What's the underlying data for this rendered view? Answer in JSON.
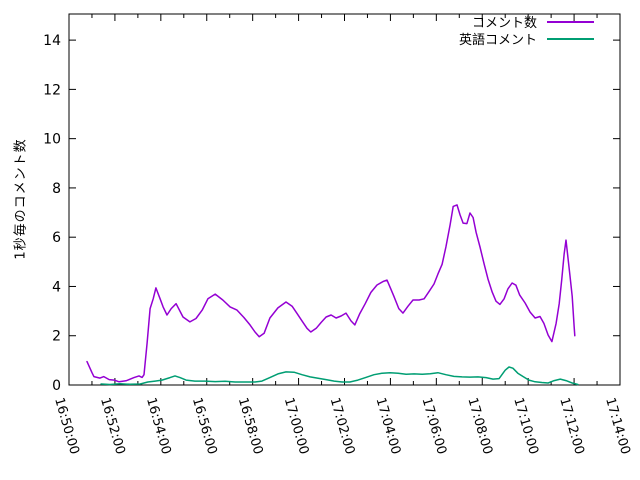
{
  "chart_data": {
    "type": "line",
    "title": "",
    "xlabel": "",
    "ylabel": "1秒毎のコメント数",
    "x_tick_labels": [
      "16:50:00",
      "16:52:00",
      "16:54:00",
      "16:56:00",
      "16:58:00",
      "17:00:00",
      "17:02:00",
      "17:04:00",
      "17:06:00",
      "17:08:00",
      "17:10:00",
      "17:12:00",
      "17:14:00"
    ],
    "x_range_seconds": [
      0,
      1440
    ],
    "x_major_tick_seconds": 120,
    "x_minor_tick_seconds": 60,
    "y_ticks": [
      0,
      2,
      4,
      6,
      8,
      10,
      12,
      14
    ],
    "ylim": [
      0,
      15.06
    ],
    "grid": false,
    "legend_position": "top-right",
    "axis_color": "#000000",
    "background_color": "#ffffff",
    "series": [
      {
        "name": "コメント数",
        "color": "#9400d3",
        "points": [
          [
            47,
            0.95
          ],
          [
            60,
            0.5
          ],
          [
            65,
            0.34
          ],
          [
            81,
            0.28
          ],
          [
            91,
            0.34
          ],
          [
            105,
            0.22
          ],
          [
            118,
            0.2
          ],
          [
            131,
            0.13
          ],
          [
            149,
            0.17
          ],
          [
            170,
            0.3
          ],
          [
            183,
            0.37
          ],
          [
            191,
            0.31
          ],
          [
            196,
            0.42
          ],
          [
            204,
            1.7
          ],
          [
            212,
            3.1
          ],
          [
            220,
            3.5
          ],
          [
            227,
            3.94
          ],
          [
            238,
            3.5
          ],
          [
            246,
            3.17
          ],
          [
            256,
            2.84
          ],
          [
            267,
            3.1
          ],
          [
            280,
            3.3
          ],
          [
            298,
            2.76
          ],
          [
            316,
            2.56
          ],
          [
            332,
            2.7
          ],
          [
            348,
            3.04
          ],
          [
            363,
            3.5
          ],
          [
            382,
            3.69
          ],
          [
            402,
            3.45
          ],
          [
            421,
            3.17
          ],
          [
            439,
            3.04
          ],
          [
            457,
            2.74
          ],
          [
            473,
            2.44
          ],
          [
            486,
            2.15
          ],
          [
            497,
            1.96
          ],
          [
            510,
            2.1
          ],
          [
            525,
            2.72
          ],
          [
            546,
            3.13
          ],
          [
            567,
            3.37
          ],
          [
            583,
            3.2
          ],
          [
            596,
            2.9
          ],
          [
            609,
            2.6
          ],
          [
            622,
            2.3
          ],
          [
            632,
            2.15
          ],
          [
            646,
            2.3
          ],
          [
            659,
            2.54
          ],
          [
            672,
            2.76
          ],
          [
            685,
            2.84
          ],
          [
            698,
            2.72
          ],
          [
            711,
            2.8
          ],
          [
            724,
            2.92
          ],
          [
            737,
            2.6
          ],
          [
            747,
            2.44
          ],
          [
            760,
            2.9
          ],
          [
            774,
            3.3
          ],
          [
            789,
            3.76
          ],
          [
            805,
            4.06
          ],
          [
            821,
            4.2
          ],
          [
            831,
            4.26
          ],
          [
            841,
            3.9
          ],
          [
            849,
            3.6
          ],
          [
            862,
            3.1
          ],
          [
            873,
            2.92
          ],
          [
            886,
            3.2
          ],
          [
            899,
            3.45
          ],
          [
            915,
            3.45
          ],
          [
            928,
            3.5
          ],
          [
            941,
            3.8
          ],
          [
            954,
            4.1
          ],
          [
            964,
            4.5
          ],
          [
            975,
            4.9
          ],
          [
            985,
            5.6
          ],
          [
            996,
            6.5
          ],
          [
            1004,
            7.25
          ],
          [
            1014,
            7.31
          ],
          [
            1022,
            6.9
          ],
          [
            1030,
            6.57
          ],
          [
            1040,
            6.55
          ],
          [
            1048,
            6.98
          ],
          [
            1056,
            6.8
          ],
          [
            1064,
            6.2
          ],
          [
            1074,
            5.6
          ],
          [
            1085,
            4.9
          ],
          [
            1095,
            4.3
          ],
          [
            1106,
            3.77
          ],
          [
            1116,
            3.4
          ],
          [
            1126,
            3.27
          ],
          [
            1137,
            3.5
          ],
          [
            1147,
            3.9
          ],
          [
            1158,
            4.14
          ],
          [
            1168,
            4.05
          ],
          [
            1178,
            3.65
          ],
          [
            1192,
            3.33
          ],
          [
            1205,
            2.96
          ],
          [
            1218,
            2.72
          ],
          [
            1231,
            2.78
          ],
          [
            1241,
            2.5
          ],
          [
            1252,
            2.03
          ],
          [
            1262,
            1.76
          ],
          [
            1273,
            2.5
          ],
          [
            1281,
            3.3
          ],
          [
            1288,
            4.3
          ],
          [
            1294,
            5.3
          ],
          [
            1299,
            5.88
          ],
          [
            1304,
            5.15
          ],
          [
            1309,
            4.46
          ],
          [
            1315,
            3.6
          ],
          [
            1320,
            2.4
          ],
          [
            1322,
            2.0
          ]
        ]
      },
      {
        "name": "英語コメント",
        "color": "#009e73",
        "points": [
          [
            84,
            0.04
          ],
          [
            107,
            0.02
          ],
          [
            133,
            0.05
          ],
          [
            159,
            0.03
          ],
          [
            186,
            0.04
          ],
          [
            206,
            0.12
          ],
          [
            225,
            0.16
          ],
          [
            243,
            0.2
          ],
          [
            264,
            0.3
          ],
          [
            277,
            0.37
          ],
          [
            290,
            0.3
          ],
          [
            306,
            0.2
          ],
          [
            329,
            0.16
          ],
          [
            355,
            0.16
          ],
          [
            382,
            0.14
          ],
          [
            408,
            0.15
          ],
          [
            434,
            0.12
          ],
          [
            460,
            0.12
          ],
          [
            486,
            0.12
          ],
          [
            504,
            0.16
          ],
          [
            525,
            0.3
          ],
          [
            546,
            0.45
          ],
          [
            567,
            0.53
          ],
          [
            588,
            0.52
          ],
          [
            609,
            0.42
          ],
          [
            630,
            0.33
          ],
          [
            651,
            0.27
          ],
          [
            672,
            0.22
          ],
          [
            693,
            0.16
          ],
          [
            714,
            0.12
          ],
          [
            734,
            0.12
          ],
          [
            755,
            0.2
          ],
          [
            776,
            0.31
          ],
          [
            797,
            0.42
          ],
          [
            818,
            0.48
          ],
          [
            839,
            0.5
          ],
          [
            860,
            0.48
          ],
          [
            881,
            0.44
          ],
          [
            902,
            0.45
          ],
          [
            923,
            0.44
          ],
          [
            944,
            0.46
          ],
          [
            964,
            0.5
          ],
          [
            985,
            0.42
          ],
          [
            1006,
            0.35
          ],
          [
            1027,
            0.33
          ],
          [
            1048,
            0.32
          ],
          [
            1069,
            0.33
          ],
          [
            1090,
            0.3
          ],
          [
            1108,
            0.24
          ],
          [
            1124,
            0.26
          ],
          [
            1140,
            0.6
          ],
          [
            1150,
            0.73
          ],
          [
            1160,
            0.68
          ],
          [
            1173,
            0.48
          ],
          [
            1186,
            0.35
          ],
          [
            1202,
            0.2
          ],
          [
            1218,
            0.13
          ],
          [
            1236,
            0.1
          ],
          [
            1252,
            0.08
          ],
          [
            1268,
            0.18
          ],
          [
            1284,
            0.24
          ],
          [
            1299,
            0.18
          ],
          [
            1315,
            0.08
          ],
          [
            1330,
            0.02
          ]
        ]
      }
    ]
  }
}
